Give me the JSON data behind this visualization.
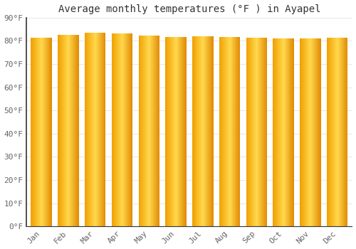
{
  "title": "Average monthly temperatures (°F ) in Ayapel",
  "months": [
    "Jan",
    "Feb",
    "Mar",
    "Apr",
    "May",
    "Jun",
    "Jul",
    "Aug",
    "Sep",
    "Oct",
    "Nov",
    "Dec"
  ],
  "values": [
    81.5,
    82.5,
    83.5,
    83.3,
    82.3,
    81.7,
    82.0,
    81.7,
    81.3,
    81.0,
    81.0,
    81.3
  ],
  "ylim": [
    0,
    90
  ],
  "yticks": [
    0,
    10,
    20,
    30,
    40,
    50,
    60,
    70,
    80,
    90
  ],
  "bar_color_edge": "#F0A000",
  "bar_color_center": "#FFD84D",
  "bar_color_dark_edge": "#E08800",
  "background_color": "#ffffff",
  "grid_color": "#e8e8e8",
  "title_fontsize": 10,
  "tick_fontsize": 8,
  "font_family": "monospace"
}
